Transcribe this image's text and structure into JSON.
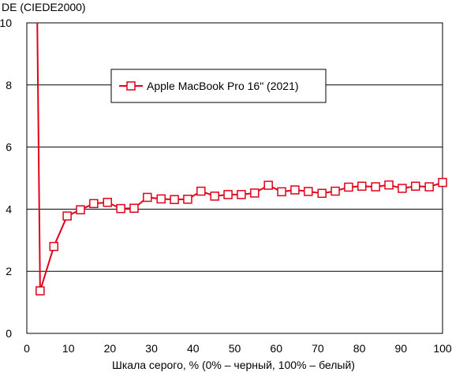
{
  "chart_data": {
    "type": "line",
    "ylabel": "DE (CIEDE2000)",
    "xlabel": "Шкала серого, % (0% – черный, 100% – белый)",
    "xlim": [
      0,
      100
    ],
    "ylim": [
      0,
      10
    ],
    "xticks": [
      0,
      10,
      20,
      30,
      40,
      50,
      60,
      70,
      80,
      90,
      100
    ],
    "yticks": [
      0,
      2,
      4,
      6,
      8,
      10
    ],
    "grid": "horizontal",
    "legend_position": "top-center",
    "series": [
      {
        "name": "Apple MacBook Pro 16\" (2021)",
        "color": "#e0001a",
        "marker": "square",
        "values": [
          {
            "x": 2.5,
            "y": 10.2
          },
          {
            "x": 3.2,
            "y": 1.37
          },
          {
            "x": 6.5,
            "y": 2.8
          },
          {
            "x": 9.7,
            "y": 3.78
          },
          {
            "x": 12.9,
            "y": 3.98
          },
          {
            "x": 16.1,
            "y": 4.18
          },
          {
            "x": 19.4,
            "y": 4.22
          },
          {
            "x": 22.6,
            "y": 4.02
          },
          {
            "x": 25.8,
            "y": 4.03
          },
          {
            "x": 29.0,
            "y": 4.38
          },
          {
            "x": 32.3,
            "y": 4.33
          },
          {
            "x": 35.5,
            "y": 4.31
          },
          {
            "x": 38.7,
            "y": 4.32
          },
          {
            "x": 41.9,
            "y": 4.58
          },
          {
            "x": 45.2,
            "y": 4.42
          },
          {
            "x": 48.4,
            "y": 4.47
          },
          {
            "x": 51.6,
            "y": 4.47
          },
          {
            "x": 54.8,
            "y": 4.52
          },
          {
            "x": 58.1,
            "y": 4.77
          },
          {
            "x": 61.3,
            "y": 4.56
          },
          {
            "x": 64.5,
            "y": 4.62
          },
          {
            "x": 67.7,
            "y": 4.57
          },
          {
            "x": 71.0,
            "y": 4.51
          },
          {
            "x": 74.2,
            "y": 4.58
          },
          {
            "x": 77.4,
            "y": 4.71
          },
          {
            "x": 80.6,
            "y": 4.74
          },
          {
            "x": 83.9,
            "y": 4.72
          },
          {
            "x": 87.1,
            "y": 4.78
          },
          {
            "x": 90.3,
            "y": 4.67
          },
          {
            "x": 93.5,
            "y": 4.74
          },
          {
            "x": 96.8,
            "y": 4.72
          },
          {
            "x": 100.0,
            "y": 4.86
          }
        ]
      }
    ]
  }
}
